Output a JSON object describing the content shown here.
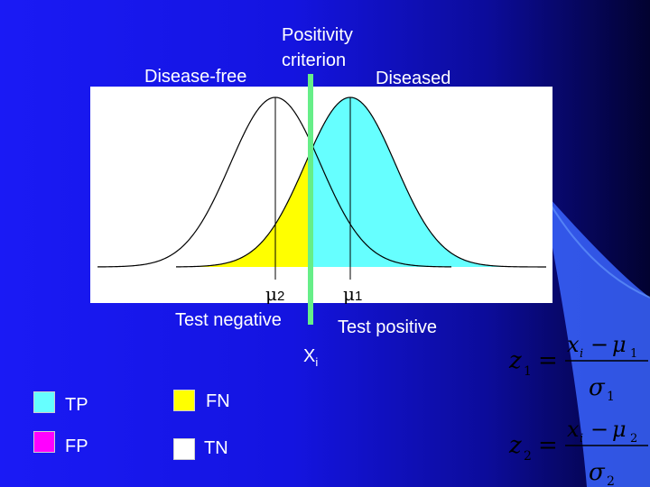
{
  "labels": {
    "criterion_line1": "Positivity",
    "criterion_line2": "criterion",
    "disease_free": "Disease-free",
    "diseased": "Diseased",
    "mu2": "μ2",
    "mu1": "μ1",
    "test_negative": "Test negative",
    "test_positive": "Test positive",
    "xi": "Xi"
  },
  "legend": [
    {
      "label": "TP",
      "color": "#66ffff"
    },
    {
      "label": "FN",
      "color": "#ffff00"
    },
    {
      "label": "FP",
      "color": "#ff00ff"
    },
    {
      "label": "TN",
      "color": "#ffffff"
    }
  ],
  "formulas": {
    "z1": "z1 = (xi − μ1) / σ1",
    "z2": "z2 = (xi − μ2) / σ2"
  },
  "colors": {
    "criterion_line": "#66ee88",
    "tp": "#66ffff",
    "fn": "#ffff00",
    "fp": "#ff00ff",
    "tn": "#ffffff",
    "curve": "#000000"
  }
}
